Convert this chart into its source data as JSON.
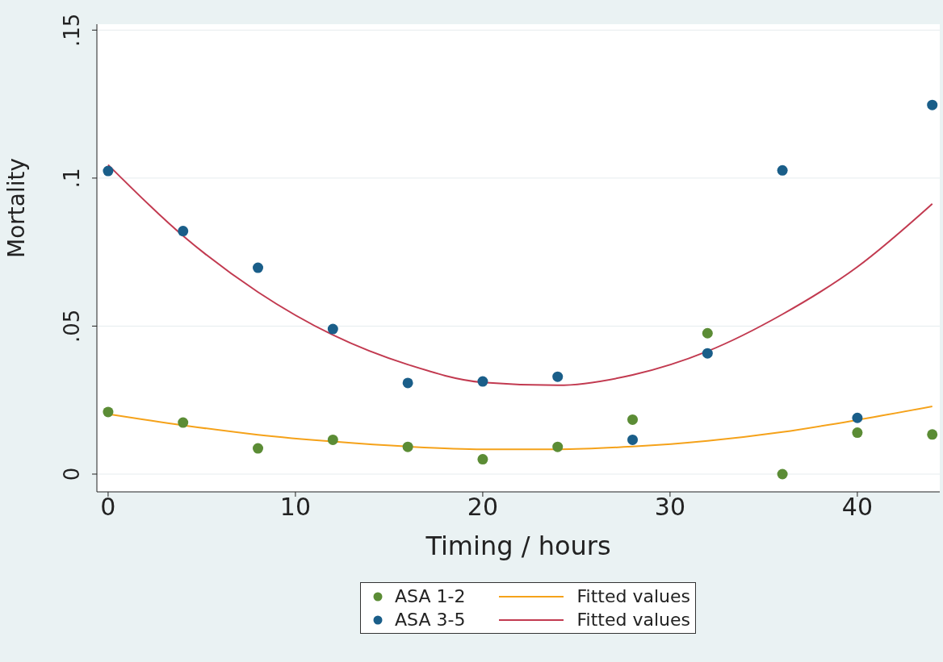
{
  "chart_data": {
    "type": "scatter",
    "xlabel": "Timing / hours",
    "ylabel": "Mortality",
    "xlim": [
      -0.6,
      44.4
    ],
    "xticks": [
      0,
      10,
      20,
      30,
      40
    ],
    "ylim": [
      -0.006,
      0.152
    ],
    "yticks": [
      0,
      {
        "value": 0.05,
        "label": ".05"
      },
      {
        "value": 0.1,
        "label": ".1"
      },
      {
        "value": 0.15,
        "label": ".15"
      }
    ],
    "grid": "y",
    "legend": "bottom",
    "marker": "circle",
    "series": [
      {
        "name": "ASA 1-2",
        "color": "#5b8c35",
        "x": [
          0,
          4,
          8,
          12,
          16,
          20,
          24,
          28,
          32,
          36,
          40,
          44
        ],
        "values": [
          0.021,
          0.0174,
          0.0087,
          0.0116,
          0.0092,
          0.005,
          0.0092,
          0.0184,
          0.0476,
          0,
          0.014,
          0.0134
        ]
      },
      {
        "name": "ASA 3-5",
        "color": "#1a5e89",
        "x": [
          0,
          4,
          8,
          12,
          16,
          20,
          24,
          28,
          32,
          36,
          40,
          44
        ],
        "values": [
          0.1024,
          0.0821,
          0.0697,
          0.049,
          0.0308,
          0.0313,
          0.0329,
          0.0116,
          0.0408,
          0.1026,
          0.019,
          0.1247
        ]
      },
      {
        "name": "Fitted values",
        "type": "line",
        "marker": "none",
        "color": "#f5a21a",
        "x": [
          0,
          4,
          8,
          12,
          16,
          20,
          24,
          28,
          32,
          36,
          40,
          44
        ],
        "values": [
          0.0203,
          0.0165,
          0.0133,
          0.011,
          0.0093,
          0.0084,
          0.0084,
          0.0093,
          0.0112,
          0.0142,
          0.0183,
          0.0229
        ]
      },
      {
        "name": "Fitted values",
        "type": "line",
        "marker": "none",
        "color": "#c23a50",
        "x": [
          0,
          4,
          8,
          12,
          16,
          20,
          24,
          28,
          32,
          36,
          40,
          44
        ],
        "values": [
          0.1045,
          0.0805,
          0.0615,
          0.047,
          0.037,
          0.031,
          0.03,
          0.0335,
          0.0415,
          0.054,
          0.07,
          0.0913
        ]
      }
    ]
  }
}
